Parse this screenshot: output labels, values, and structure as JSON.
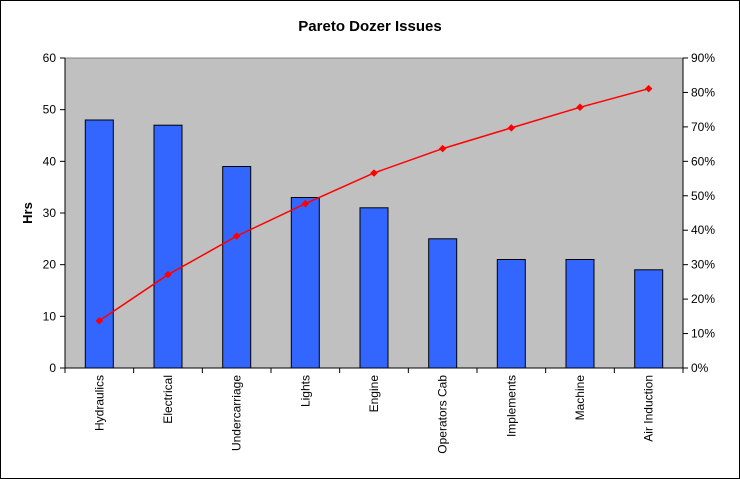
{
  "chart_data": {
    "type": "bar",
    "title": "Pareto Dozer Issues",
    "ylabel": "Hrs",
    "xlabel": "",
    "categories": [
      "Hydraulics",
      "Electrical",
      "Undercarriage",
      "Lights",
      "Engine",
      "Operators Cab",
      "Implements",
      "Machine",
      "Air Induction"
    ],
    "series": [
      {
        "type": "bar",
        "axis": "left",
        "values": [
          48,
          47,
          39,
          33,
          31,
          25,
          21,
          21,
          19
        ]
      },
      {
        "type": "line",
        "axis": "right",
        "values": [
          13.7,
          27.1,
          38.3,
          47.7,
          56.6,
          63.7,
          69.7,
          75.7,
          81.1
        ]
      }
    ],
    "ylim": [
      0,
      60
    ],
    "yticks": [
      "0",
      "10",
      "20",
      "30",
      "40",
      "50",
      "60"
    ],
    "y2lim": [
      0,
      90
    ],
    "y2ticks": [
      "0%",
      "10%",
      "20%",
      "30%",
      "40%",
      "50%",
      "60%",
      "70%",
      "80%",
      "90%"
    ],
    "grid": false,
    "legend": "none",
    "colors": {
      "plot_background": "#c0c0c0",
      "bar_fill": "#3366ff",
      "bar_stroke": "#000000",
      "line": "#ff0000",
      "marker": "#ff0000"
    }
  }
}
